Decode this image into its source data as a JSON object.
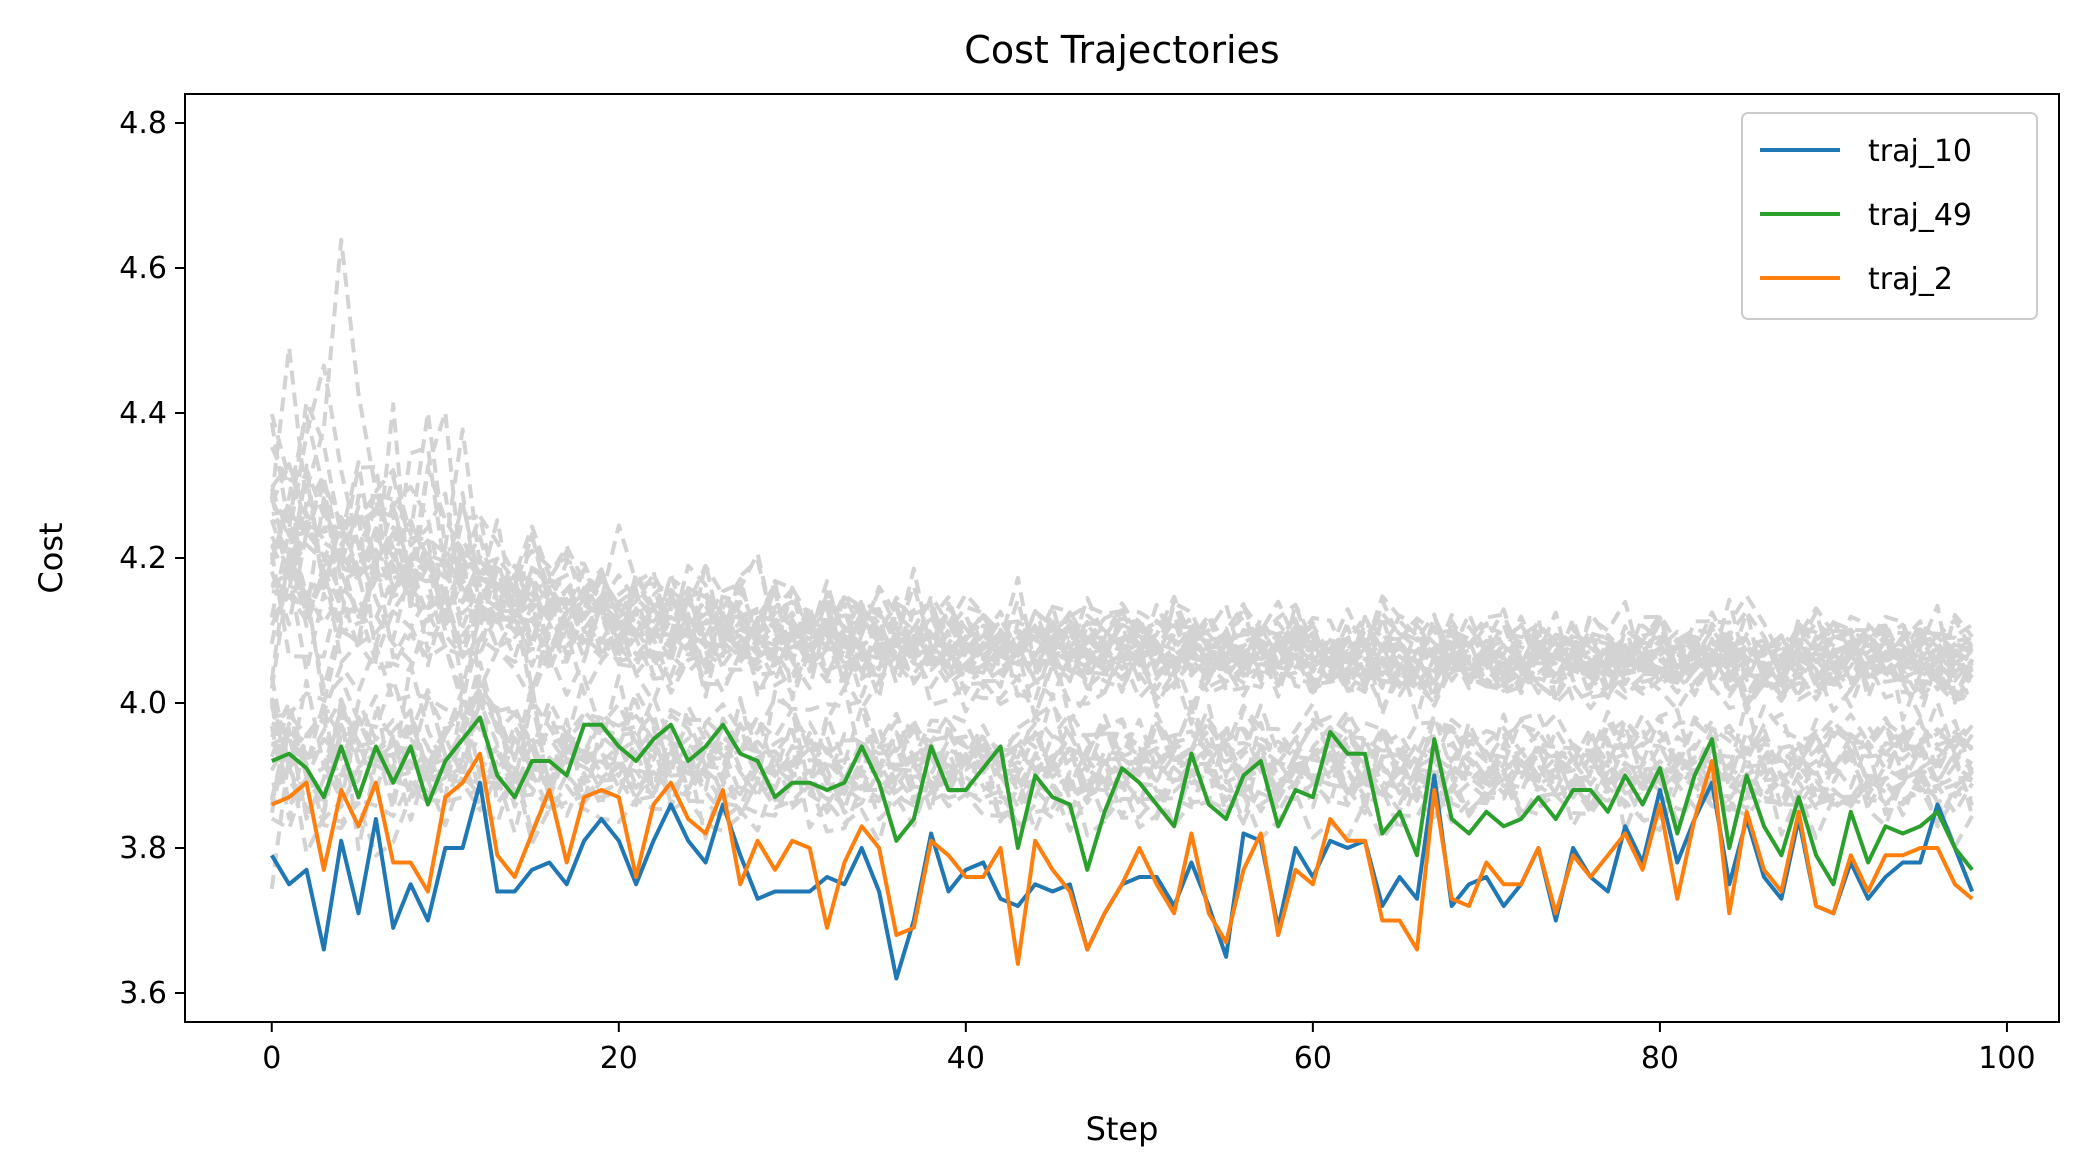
{
  "chart_data": {
    "type": "line",
    "title": "Cost Trajectories",
    "xlabel": "Step",
    "ylabel": "Cost",
    "xlim": [
      -5,
      103
    ],
    "ylim": [
      3.56,
      4.84
    ],
    "xticks": [
      0,
      20,
      40,
      60,
      80,
      100
    ],
    "yticks": [
      3.6,
      3.8,
      4.0,
      4.2,
      4.4,
      4.6,
      4.8
    ],
    "ytick_labels": [
      "3.6",
      "3.8",
      "4.0",
      "4.2",
      "4.4",
      "4.6",
      "4.8"
    ],
    "grid": false,
    "legend_position": "top-right",
    "background_style": {
      "color": "#d3d3d3",
      "dash": "dashed",
      "count": 50
    },
    "highlighted_series": [
      {
        "name": "traj_10",
        "color": "#1f77b4",
        "x_start": 0,
        "values": [
          3.79,
          3.75,
          3.77,
          3.66,
          3.81,
          3.71,
          3.84,
          3.69,
          3.75,
          3.7,
          3.8,
          3.8,
          3.89,
          3.74,
          3.74,
          3.77,
          3.78,
          3.75,
          3.81,
          3.84,
          3.81,
          3.75,
          3.81,
          3.86,
          3.81,
          3.78,
          3.86,
          3.79,
          3.73,
          3.74,
          3.74,
          3.74,
          3.76,
          3.75,
          3.8,
          3.74,
          3.62,
          3.7,
          3.82,
          3.74,
          3.77,
          3.78,
          3.73,
          3.72,
          3.75,
          3.74,
          3.75,
          3.66,
          3.71,
          3.75,
          3.76,
          3.76,
          3.72,
          3.78,
          3.72,
          3.65,
          3.82,
          3.81,
          3.69,
          3.8,
          3.76,
          3.81,
          3.8,
          3.81,
          3.72,
          3.76,
          3.73,
          3.9,
          3.72,
          3.75,
          3.76,
          3.72,
          3.75,
          3.8,
          3.7,
          3.8,
          3.76,
          3.74,
          3.83,
          3.78,
          3.88,
          3.78,
          3.84,
          3.89,
          3.75,
          3.84,
          3.76,
          3.73,
          3.84,
          3.72,
          3.71,
          3.78,
          3.73,
          3.76,
          3.78,
          3.78,
          3.86,
          3.8,
          3.74
        ]
      },
      {
        "name": "traj_49",
        "color": "#2ca02c",
        "x_start": 0,
        "values": [
          3.92,
          3.93,
          3.91,
          3.87,
          3.94,
          3.87,
          3.94,
          3.89,
          3.94,
          3.86,
          3.92,
          3.95,
          3.98,
          3.9,
          3.87,
          3.92,
          3.92,
          3.9,
          3.97,
          3.97,
          3.94,
          3.92,
          3.95,
          3.97,
          3.92,
          3.94,
          3.97,
          3.93,
          3.92,
          3.87,
          3.89,
          3.89,
          3.88,
          3.89,
          3.94,
          3.89,
          3.81,
          3.84,
          3.94,
          3.88,
          3.88,
          3.91,
          3.94,
          3.8,
          3.9,
          3.87,
          3.86,
          3.77,
          3.85,
          3.91,
          3.89,
          3.86,
          3.83,
          3.93,
          3.86,
          3.84,
          3.9,
          3.92,
          3.83,
          3.88,
          3.87,
          3.96,
          3.93,
          3.93,
          3.82,
          3.85,
          3.79,
          3.95,
          3.84,
          3.82,
          3.85,
          3.83,
          3.84,
          3.87,
          3.84,
          3.88,
          3.88,
          3.85,
          3.9,
          3.86,
          3.91,
          3.82,
          3.9,
          3.95,
          3.8,
          3.9,
          3.83,
          3.79,
          3.87,
          3.79,
          3.75,
          3.85,
          3.78,
          3.83,
          3.82,
          3.83,
          3.85,
          3.8,
          3.77
        ]
      },
      {
        "name": "traj_2",
        "color": "#ff7f0e",
        "x_start": 0,
        "values": [
          3.86,
          3.87,
          3.89,
          3.77,
          3.88,
          3.83,
          3.89,
          3.78,
          3.78,
          3.74,
          3.87,
          3.89,
          3.93,
          3.79,
          3.76,
          3.82,
          3.88,
          3.78,
          3.87,
          3.88,
          3.87,
          3.76,
          3.86,
          3.89,
          3.84,
          3.82,
          3.88,
          3.75,
          3.81,
          3.77,
          3.81,
          3.8,
          3.69,
          3.78,
          3.83,
          3.8,
          3.68,
          3.69,
          3.81,
          3.79,
          3.76,
          3.76,
          3.8,
          3.64,
          3.81,
          3.77,
          3.74,
          3.66,
          3.71,
          3.75,
          3.8,
          3.75,
          3.71,
          3.82,
          3.71,
          3.67,
          3.77,
          3.82,
          3.68,
          3.77,
          3.75,
          3.84,
          3.81,
          3.81,
          3.7,
          3.7,
          3.66,
          3.88,
          3.73,
          3.72,
          3.78,
          3.75,
          3.75,
          3.8,
          3.71,
          3.79,
          3.76,
          3.79,
          3.82,
          3.77,
          3.86,
          3.73,
          3.84,
          3.92,
          3.71,
          3.85,
          3.77,
          3.74,
          3.85,
          3.72,
          3.71,
          3.79,
          3.74,
          3.79,
          3.79,
          3.8,
          3.8,
          3.75,
          3.73
        ]
      }
    ]
  }
}
